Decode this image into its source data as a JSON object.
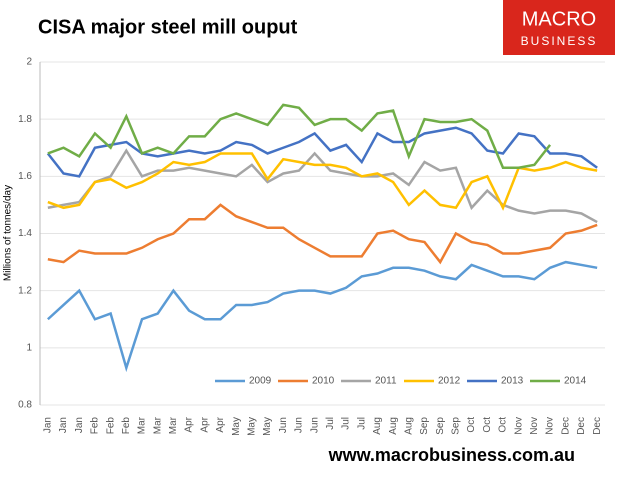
{
  "chart_data": {
    "type": "line",
    "title": "CISA major steel mill ouput",
    "y_label": "Millions of tonnes/day",
    "logo": [
      "MACRO",
      "BUSINESS"
    ],
    "footer": "www.macrobusiness.com.au",
    "categories": [
      "Jan",
      "Jan",
      "Jan",
      "Feb",
      "Feb",
      "Feb",
      "Mar",
      "Mar",
      "Mar",
      "Apr",
      "Apr",
      "Apr",
      "May",
      "May",
      "May",
      "Jun",
      "Jun",
      "Jun",
      "Jul",
      "Jul",
      "Jul",
      "Aug",
      "Aug",
      "Aug",
      "Sep",
      "Sep",
      "Sep",
      "Oct",
      "Oct",
      "Oct",
      "Nov",
      "Nov",
      "Nov",
      "Dec",
      "Dec",
      "Dec"
    ],
    "ylim": [
      0.8,
      2
    ],
    "yticks": [
      0.8,
      1,
      1.2,
      1.4,
      1.6,
      1.8,
      2
    ],
    "grid": true,
    "series": [
      {
        "name": "2009",
        "color": "#5b9bd5",
        "values": [
          1.1,
          1.15,
          1.2,
          1.1,
          1.12,
          0.93,
          1.1,
          1.12,
          1.2,
          1.13,
          1.1,
          1.1,
          1.15,
          1.15,
          1.16,
          1.19,
          1.2,
          1.2,
          1.19,
          1.21,
          1.25,
          1.26,
          1.28,
          1.28,
          1.27,
          1.25,
          1.24,
          1.29,
          1.27,
          1.25,
          1.25,
          1.24,
          1.28,
          1.3,
          1.29,
          1.28
        ]
      },
      {
        "name": "2010",
        "color": "#ed7d31",
        "values": [
          1.31,
          1.3,
          1.34,
          1.33,
          1.33,
          1.33,
          1.35,
          1.38,
          1.4,
          1.45,
          1.45,
          1.5,
          1.46,
          1.44,
          1.42,
          1.42,
          1.38,
          1.35,
          1.32,
          1.32,
          1.32,
          1.4,
          1.41,
          1.38,
          1.37,
          1.3,
          1.4,
          1.37,
          1.36,
          1.33,
          1.33,
          1.34,
          1.35,
          1.4,
          1.41,
          1.43
        ]
      },
      {
        "name": "2011",
        "color": "#a5a5a5",
        "values": [
          1.49,
          1.5,
          1.51,
          1.58,
          1.6,
          1.69,
          1.6,
          1.62,
          1.62,
          1.63,
          1.62,
          1.61,
          1.6,
          1.64,
          1.58,
          1.61,
          1.62,
          1.68,
          1.62,
          1.61,
          1.6,
          1.6,
          1.61,
          1.57,
          1.65,
          1.62,
          1.63,
          1.49,
          1.55,
          1.5,
          1.48,
          1.47,
          1.48,
          1.48,
          1.47,
          1.44
        ]
      },
      {
        "name": "2012",
        "color": "#ffc000",
        "values": [
          1.51,
          1.49,
          1.5,
          1.58,
          1.59,
          1.56,
          1.58,
          1.61,
          1.65,
          1.64,
          1.65,
          1.68,
          1.68,
          1.68,
          1.59,
          1.66,
          1.65,
          1.64,
          1.64,
          1.63,
          1.6,
          1.61,
          1.58,
          1.5,
          1.55,
          1.5,
          1.49,
          1.58,
          1.6,
          1.49,
          1.63,
          1.62,
          1.63,
          1.65,
          1.63,
          1.62
        ]
      },
      {
        "name": "2013",
        "color": "#4472c4",
        "values": [
          1.68,
          1.61,
          1.6,
          1.7,
          1.71,
          1.72,
          1.68,
          1.67,
          1.68,
          1.69,
          1.68,
          1.69,
          1.72,
          1.71,
          1.68,
          1.7,
          1.72,
          1.75,
          1.69,
          1.71,
          1.65,
          1.75,
          1.72,
          1.72,
          1.75,
          1.76,
          1.77,
          1.75,
          1.69,
          1.68,
          1.75,
          1.74,
          1.68,
          1.68,
          1.67,
          1.63
        ]
      },
      {
        "name": "2014",
        "color": "#70ad47",
        "values": [
          1.68,
          1.7,
          1.67,
          1.75,
          1.7,
          1.81,
          1.68,
          1.7,
          1.68,
          1.74,
          1.74,
          1.8,
          1.82,
          1.8,
          1.78,
          1.85,
          1.84,
          1.78,
          1.8,
          1.8,
          1.76,
          1.82,
          1.83,
          1.67,
          1.8,
          1.79,
          1.79,
          1.8,
          1.76,
          1.63,
          1.63,
          1.64,
          1.71,
          null,
          null,
          null
        ]
      }
    ]
  }
}
